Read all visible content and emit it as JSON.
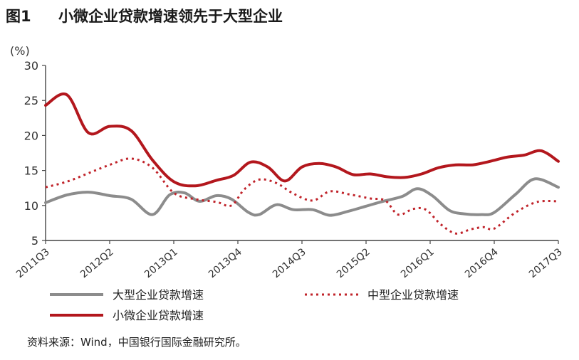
{
  "figure": {
    "number": "图1",
    "title": "小微企业贷款增速领先于大型企业",
    "source": "资料来源：Wind，中国银行国际金融研究所。"
  },
  "chart_data": {
    "type": "line",
    "ylabel": "(%)",
    "ylim": [
      5,
      30
    ],
    "yticks": [
      5,
      10,
      15,
      20,
      25,
      30
    ],
    "x_range": [
      0,
      24
    ],
    "x_ticks": [
      {
        "label": "2011Q3",
        "x": 0
      },
      {
        "label": "2012Q2",
        "x": 3
      },
      {
        "label": "2013Q1",
        "x": 6
      },
      {
        "label": "2013Q4",
        "x": 9
      },
      {
        "label": "2014Q3",
        "x": 12
      },
      {
        "label": "2015Q2",
        "x": 15
      },
      {
        "label": "2016Q1",
        "x": 18
      },
      {
        "label": "2016Q4",
        "x": 21
      },
      {
        "label": "2017Q3",
        "x": 24
      }
    ],
    "grid": false,
    "legend": "bottom",
    "series": [
      {
        "name": "大型企业贷款增速",
        "color": "#8c8c8c",
        "style": "solid",
        "points": [
          [
            0,
            10.4
          ],
          [
            1,
            11.5
          ],
          [
            2,
            11.9
          ],
          [
            3,
            11.4
          ],
          [
            4,
            10.9
          ],
          [
            5,
            8.7
          ],
          [
            5.8,
            11.5
          ],
          [
            6.5,
            11.8
          ],
          [
            7.2,
            10.6
          ],
          [
            8,
            11.4
          ],
          [
            8.7,
            10.9
          ],
          [
            9.5,
            9.0
          ],
          [
            10,
            8.7
          ],
          [
            10.8,
            10.1
          ],
          [
            11.6,
            9.4
          ],
          [
            12.5,
            9.4
          ],
          [
            13.3,
            8.6
          ],
          [
            14.2,
            9.2
          ],
          [
            15,
            9.9
          ],
          [
            15.8,
            10.6
          ],
          [
            16.7,
            11.3
          ],
          [
            17.4,
            12.4
          ],
          [
            18.1,
            11.4
          ],
          [
            18.9,
            9.3
          ],
          [
            19.6,
            8.8
          ],
          [
            20.4,
            8.7
          ],
          [
            21,
            9.0
          ],
          [
            22,
            11.6
          ],
          [
            22.9,
            13.8
          ],
          [
            24,
            12.6
          ]
        ]
      },
      {
        "name": "中型企业贷款增速",
        "color": "#c0232a",
        "style": "dotted",
        "points": [
          [
            0,
            12.6
          ],
          [
            1,
            13.4
          ],
          [
            2,
            14.6
          ],
          [
            3,
            15.8
          ],
          [
            4,
            16.7
          ],
          [
            5,
            15.4
          ],
          [
            6,
            11.8
          ],
          [
            7,
            10.9
          ],
          [
            8,
            10.5
          ],
          [
            8.7,
            10.0
          ],
          [
            9.3,
            12.3
          ],
          [
            10,
            13.7
          ],
          [
            10.8,
            13.2
          ],
          [
            11.6,
            11.7
          ],
          [
            12.5,
            10.7
          ],
          [
            13.3,
            12.0
          ],
          [
            14.2,
            11.6
          ],
          [
            15.2,
            11.0
          ],
          [
            15.9,
            10.7
          ],
          [
            16.5,
            8.7
          ],
          [
            17.2,
            9.5
          ],
          [
            17.8,
            9.4
          ],
          [
            18.5,
            7.3
          ],
          [
            19.2,
            6.0
          ],
          [
            19.9,
            6.6
          ],
          [
            20.5,
            6.9
          ],
          [
            21,
            6.7
          ],
          [
            22,
            9.0
          ],
          [
            23,
            10.5
          ],
          [
            24,
            10.6
          ]
        ]
      },
      {
        "name": "小微企业贷款增速",
        "color": "#b3171d",
        "style": "solid",
        "points": [
          [
            0,
            24.3
          ],
          [
            1,
            25.8
          ],
          [
            2,
            20.4
          ],
          [
            3,
            21.3
          ],
          [
            4,
            20.7
          ],
          [
            5,
            16.5
          ],
          [
            6,
            13.4
          ],
          [
            7,
            12.8
          ],
          [
            8,
            13.6
          ],
          [
            8.8,
            14.3
          ],
          [
            9.6,
            16.2
          ],
          [
            10.4,
            15.5
          ],
          [
            11.2,
            13.5
          ],
          [
            12,
            15.5
          ],
          [
            12.8,
            16.0
          ],
          [
            13.6,
            15.5
          ],
          [
            14.4,
            14.4
          ],
          [
            15.2,
            14.5
          ],
          [
            16,
            14.1
          ],
          [
            16.8,
            14.0
          ],
          [
            17.6,
            14.5
          ],
          [
            18.4,
            15.4
          ],
          [
            19.2,
            15.8
          ],
          [
            20,
            15.8
          ],
          [
            20.8,
            16.3
          ],
          [
            21.6,
            16.9
          ],
          [
            22.4,
            17.2
          ],
          [
            23.2,
            17.8
          ],
          [
            24,
            16.3
          ]
        ]
      }
    ]
  }
}
